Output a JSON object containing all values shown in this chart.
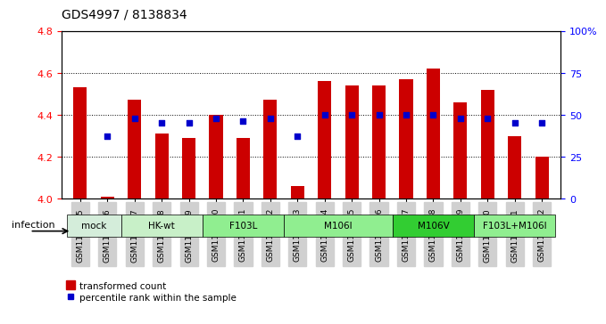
{
  "title": "GDS4997 / 8138834",
  "samples": [
    "GSM1172635",
    "GSM1172636",
    "GSM1172637",
    "GSM1172638",
    "GSM1172639",
    "GSM1172640",
    "GSM1172641",
    "GSM1172642",
    "GSM1172643",
    "GSM1172644",
    "GSM1172645",
    "GSM1172646",
    "GSM1172647",
    "GSM1172648",
    "GSM1172649",
    "GSM1172650",
    "GSM1172651",
    "GSM1172652"
  ],
  "red_values": [
    4.53,
    4.01,
    4.47,
    4.31,
    4.29,
    4.4,
    4.29,
    4.47,
    4.06,
    4.56,
    4.54,
    4.54,
    4.57,
    4.62,
    4.46,
    4.52,
    4.3,
    4.2
  ],
  "blue_values": [
    null,
    37,
    48,
    45,
    45,
    48,
    46,
    48,
    37,
    50,
    50,
    50,
    50,
    50,
    48,
    48,
    45,
    45
  ],
  "groups": [
    {
      "label": "mock",
      "start": 0,
      "end": 2,
      "color": "#d4edda"
    },
    {
      "label": "HK-wt",
      "start": 2,
      "end": 5,
      "color": "#c8f0c8"
    },
    {
      "label": "F103L",
      "start": 5,
      "end": 8,
      "color": "#90ee90"
    },
    {
      "label": "M106I",
      "start": 8,
      "end": 12,
      "color": "#90ee90"
    },
    {
      "label": "M106V",
      "start": 12,
      "end": 15,
      "color": "#32cd32"
    },
    {
      "label": "F103L+M106I",
      "start": 15,
      "end": 18,
      "color": "#90ee90"
    }
  ],
  "ylim_left": [
    4.0,
    4.8
  ],
  "ylim_right": [
    0,
    100
  ],
  "yticks_left": [
    4.0,
    4.2,
    4.4,
    4.6,
    4.8
  ],
  "yticks_right": [
    0,
    25,
    50,
    75,
    100
  ],
  "ytick_labels_right": [
    "0",
    "25",
    "50",
    "75",
    "100%"
  ],
  "bar_color": "#cc0000",
  "dot_color": "#0000cc",
  "background_color": "#ffffff",
  "infection_label": "infection",
  "legend_red": "transformed count",
  "legend_blue": "percentile rank within the sample"
}
